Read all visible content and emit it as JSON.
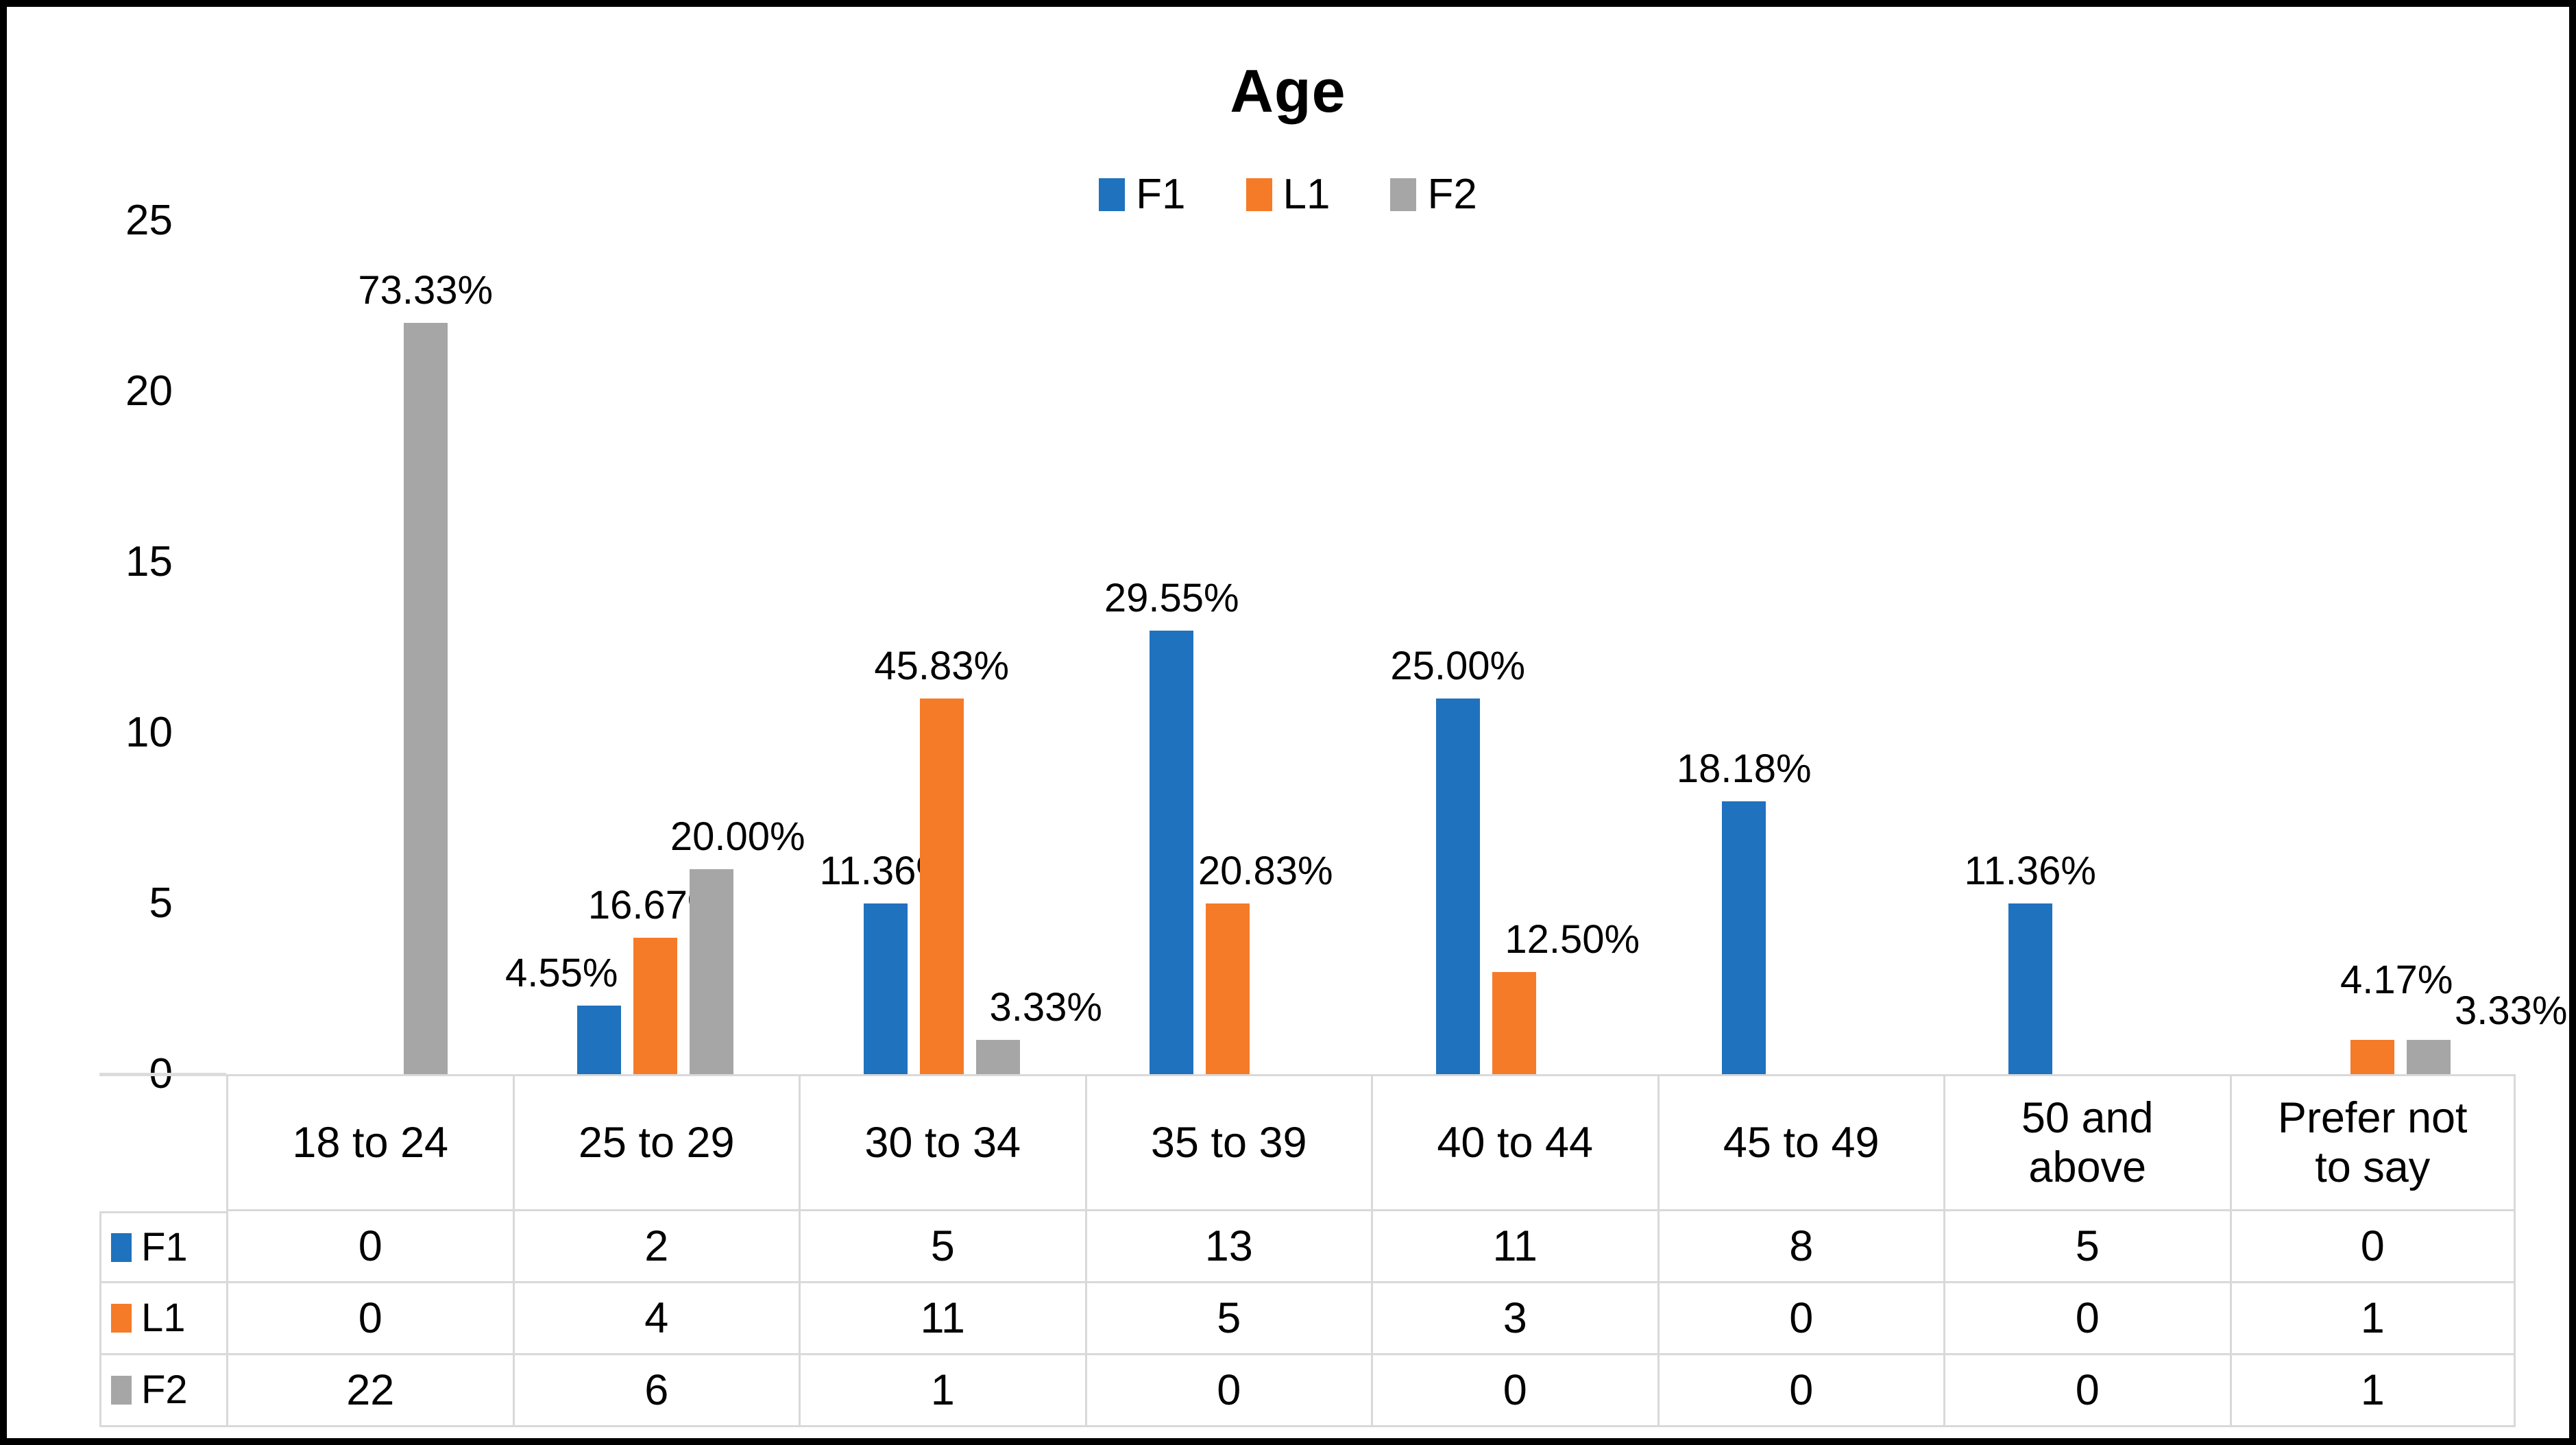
{
  "chart_data": {
    "type": "bar",
    "title": "Age",
    "categories": [
      "18 to 24",
      "25 to 29",
      "30 to 34",
      "35 to 39",
      "40 to 44",
      "45 to 49",
      "50 and above",
      "Prefer not to say"
    ],
    "series": [
      {
        "name": "F1",
        "color": "#1f72be",
        "values": [
          0,
          2,
          5,
          13,
          11,
          8,
          5,
          0
        ],
        "labels": [
          "",
          "4.55%",
          "11.36%",
          "29.55%",
          "25.00%",
          "18.18%",
          "11.36%",
          ""
        ]
      },
      {
        "name": "L1",
        "color": "#f57b28",
        "values": [
          0,
          4,
          11,
          5,
          3,
          0,
          0,
          1
        ],
        "labels": [
          "",
          "16.67%",
          "45.83%",
          "20.83%",
          "12.50%",
          "",
          "",
          "4.17%"
        ]
      },
      {
        "name": "F2",
        "color": "#a6a6a6",
        "values": [
          22,
          6,
          1,
          0,
          0,
          0,
          0,
          1
        ],
        "labels": [
          "73.33%",
          "20.00%",
          "3.33%",
          "",
          "",
          "",
          "",
          "3.33%"
        ]
      }
    ],
    "y_axis": {
      "min": 0,
      "max": 25,
      "step": 5,
      "ticks": [
        "25",
        "20",
        "15",
        "10",
        "5",
        "0"
      ]
    },
    "legend": [
      "F1",
      "L1",
      "F2"
    ],
    "table": {
      "row_headers": [
        "F1",
        "L1",
        "F2"
      ],
      "column_headers": [
        "18 to 24",
        "25 to 29",
        "30 to 34",
        "35 to 39",
        "40 to 44",
        "45 to 49",
        "50 and above",
        "Prefer not to say"
      ],
      "rows": [
        [
          "0",
          "2",
          "5",
          "13",
          "11",
          "8",
          "5",
          "0"
        ],
        [
          "0",
          "4",
          "11",
          "5",
          "3",
          "0",
          "0",
          "1"
        ],
        [
          "22",
          "6",
          "1",
          "0",
          "0",
          "0",
          "0",
          "1"
        ]
      ]
    },
    "layout_hints": {
      "grid": false,
      "legend_position": "top-center",
      "plot_background": "#ffffff",
      "table_border_color": "#d9d9d9",
      "label_offset_overrides": {
        "0_1": [
          -55,
          0
        ],
        "1_3": [
          55,
          0
        ],
        "1_4": [
          85,
          0
        ],
        "2_1": [
          38,
          0
        ],
        "2_2": [
          70,
          0
        ],
        "1_7": [
          35,
          -40
        ],
        "2_7": [
          120,
          5
        ]
      }
    }
  }
}
